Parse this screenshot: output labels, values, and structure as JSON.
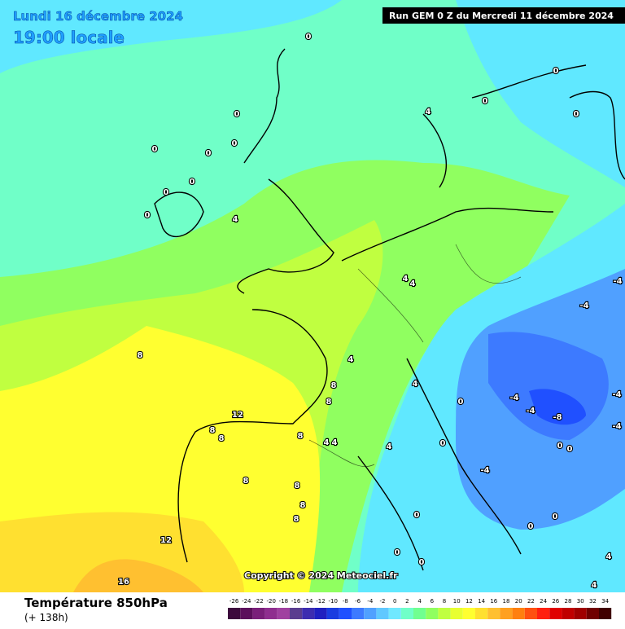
{
  "header": {
    "date": "Lundi 16 décembre 2024",
    "time": "19:00 locale",
    "run": "Run GEM 0 Z du Mercredi 11 décembre 2024"
  },
  "copyright": "Copyright © 2024 Meteociel.fr",
  "footer": {
    "title": "Température 850hPa",
    "subtitle": "(+ 138h)"
  },
  "legend": {
    "ticks": [
      -26,
      -24,
      -22,
      -20,
      -18,
      -16,
      -14,
      -12,
      -10,
      -8,
      -6,
      -4,
      -2,
      0,
      2,
      4,
      6,
      8,
      10,
      12,
      14,
      16,
      18,
      20,
      22,
      24,
      26,
      28,
      30,
      32,
      34
    ],
    "colors": [
      "#3d0a3d",
      "#5c0f5c",
      "#7a1f7a",
      "#8f2e8f",
      "#a040a0",
      "#5a3d8f",
      "#3d2db0",
      "#2020c0",
      "#1a3de0",
      "#2050ff",
      "#3d7aff",
      "#50a0ff",
      "#60c8ff",
      "#70e8ff",
      "#70ffc8",
      "#70ff90",
      "#90ff60",
      "#c0ff40",
      "#e8ff30",
      "#ffff30",
      "#ffe030",
      "#ffc030",
      "#ffa020",
      "#ff8010",
      "#ff5010",
      "#ff2010",
      "#e00000",
      "#c00000",
      "#a00000",
      "#700000",
      "#400000"
    ]
  },
  "contour_labels": [
    0,
    0,
    0,
    0,
    0,
    0,
    0,
    0,
    0,
    0,
    0,
    4,
    4,
    4,
    4,
    -4,
    -4,
    4,
    8,
    8,
    8,
    4,
    0,
    -4,
    -4,
    -8,
    -4,
    -4,
    12,
    8,
    8,
    8,
    4,
    4,
    4,
    0,
    0,
    0,
    -4,
    8,
    8,
    8,
    8,
    0,
    0,
    0,
    12,
    0,
    0,
    4,
    16,
    4
  ]
}
